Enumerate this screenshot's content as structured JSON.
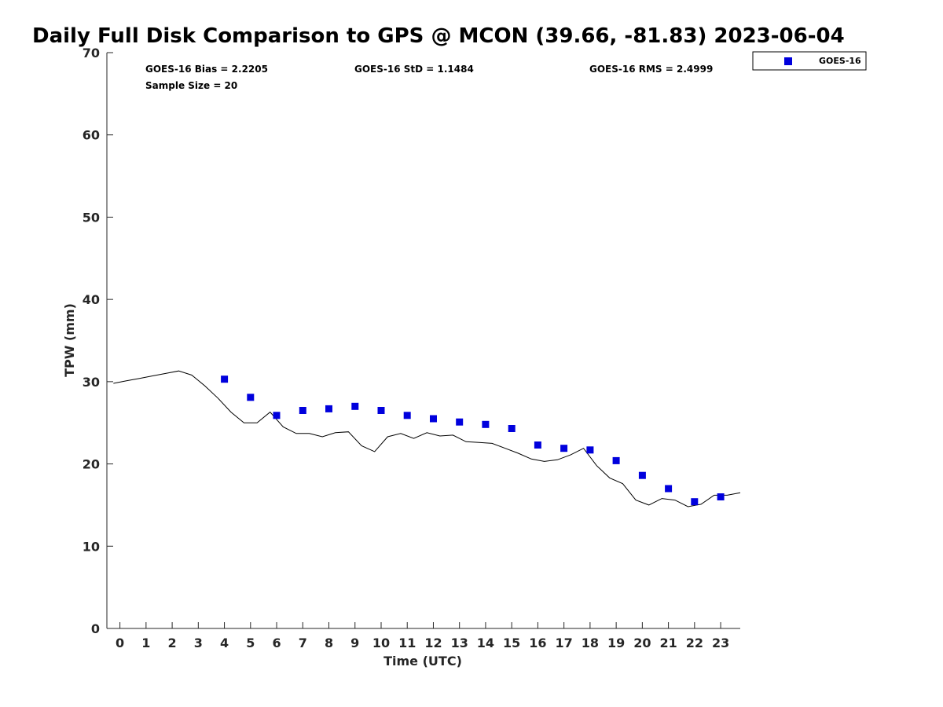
{
  "chart_data": {
    "type": "scatter",
    "title": "Daily Full Disk Comparison to GPS @ MCON (39.66, -81.83) 2023-06-04",
    "xlabel": "Time (UTC)",
    "ylabel": "TPW (mm)",
    "xlim": [
      -0.5,
      23.75
    ],
    "ylim": [
      0,
      70
    ],
    "xticks": [
      0,
      1,
      2,
      3,
      4,
      5,
      6,
      7,
      8,
      9,
      10,
      11,
      12,
      13,
      14,
      15,
      16,
      17,
      18,
      19,
      20,
      21,
      22,
      23
    ],
    "yticks": [
      0,
      10,
      20,
      30,
      40,
      50,
      60,
      70
    ],
    "grid": false,
    "legend_position": "top-right outside",
    "stats": {
      "bias": "GOES-16 Bias = 2.2205",
      "std": "GOES-16 StD = 1.1484",
      "rms": "GOES-16 RMS = 2.4999",
      "sample_size": "Sample Size = 20"
    },
    "series": [
      {
        "name": "GOES-16",
        "kind": "scatter",
        "marker": "square",
        "color": "#0000dd",
        "x": [
          4,
          5,
          6,
          7,
          8,
          9,
          10,
          11,
          12,
          13,
          14,
          15,
          16,
          17,
          18,
          19,
          20,
          21,
          22,
          23
        ],
        "y": [
          30.3,
          28.1,
          25.9,
          26.5,
          26.7,
          27.0,
          26.5,
          25.9,
          25.5,
          25.1,
          24.8,
          24.3,
          22.3,
          21.9,
          21.7,
          20.4,
          18.6,
          17.0,
          15.4,
          16.0
        ]
      },
      {
        "kind": "line",
        "color": "#000000",
        "x": [
          -0.25,
          0.25,
          0.75,
          1.25,
          1.75,
          2.25,
          2.75,
          3.25,
          3.75,
          4.25,
          4.75,
          5.25,
          5.75,
          6.25,
          6.75,
          7.25,
          7.75,
          8.25,
          8.75,
          9.25,
          9.75,
          10.25,
          10.75,
          11.25,
          11.75,
          12.25,
          12.75,
          13.25,
          13.75,
          14.25,
          14.75,
          15.25,
          15.75,
          16.25,
          16.75,
          17.25,
          17.75,
          18.25,
          18.75,
          19.25,
          19.75,
          20.25,
          20.75,
          21.25,
          21.75,
          22.25,
          22.75,
          23.25,
          23.75
        ],
        "y": [
          29.8,
          30.1,
          30.4,
          30.7,
          31.0,
          31.3,
          30.8,
          29.5,
          28.0,
          26.3,
          25.0,
          25.0,
          26.3,
          24.5,
          23.7,
          23.7,
          23.3,
          23.8,
          23.9,
          22.2,
          21.5,
          23.3,
          23.7,
          23.1,
          23.8,
          23.4,
          23.5,
          22.7,
          22.6,
          22.5,
          21.9,
          21.3,
          20.6,
          20.3,
          20.5,
          21.1,
          21.9,
          19.8,
          18.3,
          17.6,
          15.6,
          15.0,
          15.8,
          15.6,
          14.8,
          15.1,
          16.2,
          16.2,
          16.5
        ]
      }
    ]
  }
}
